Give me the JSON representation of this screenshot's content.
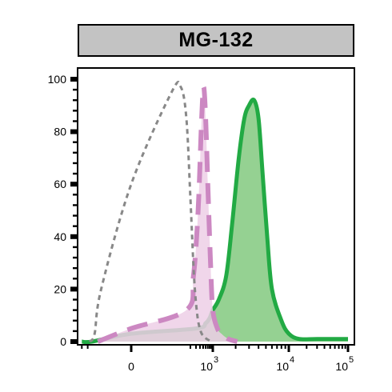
{
  "chart_data": {
    "type": "area",
    "title": "MG-132",
    "xlabel": "",
    "ylabel": "",
    "x_scale": "biexponential",
    "xlim": [
      -1500,
      100000
    ],
    "ylim": [
      0,
      100
    ],
    "y_ticks": [
      0,
      20,
      40,
      60,
      80,
      100
    ],
    "x_ticks": [
      {
        "value": 0,
        "label": "0",
        "exp": ""
      },
      {
        "value": 1000,
        "label": "10",
        "exp": "3"
      },
      {
        "value": 10000,
        "label": "10",
        "exp": "4"
      },
      {
        "value": 100000,
        "label": "10",
        "exp": "5"
      }
    ],
    "grid": false,
    "legend": "none",
    "series": [
      {
        "color": "#888888",
        "fill": "none",
        "line_style": "short-dash",
        "x": [
          -400,
          -220,
          -100,
          0,
          50,
          100,
          150,
          200,
          260,
          330,
          420,
          520,
          650,
          900
        ],
        "y": [
          0,
          3,
          20,
          60,
          95,
          97,
          85,
          55,
          25,
          10,
          4,
          2,
          1,
          0
        ]
      },
      {
        "color": "#cc88c2",
        "fill": "#edcfe6",
        "line_style": "long-dash",
        "x": [
          -150,
          0,
          150,
          250,
          350,
          450,
          520,
          600,
          700,
          850,
          1000,
          1150,
          1300,
          1600,
          2100
        ],
        "y": [
          0,
          5,
          12,
          25,
          50,
          85,
          97,
          85,
          60,
          30,
          12,
          5,
          3,
          1,
          0
        ]
      },
      {
        "color": "#22aa44",
        "fill": "#8fcf8c",
        "line_style": "solid",
        "x": [
          -1000,
          -300,
          0,
          300,
          600,
          800,
          1000,
          1200,
          1500,
          1800,
          2200,
          2600,
          3000,
          3500,
          4000,
          4500,
          5200,
          6000,
          8000,
          10000,
          15000,
          30000,
          100000
        ],
        "y": [
          0,
          0,
          3,
          5,
          7,
          9,
          12,
          16,
          25,
          45,
          70,
          85,
          90,
          92,
          85,
          65,
          40,
          20,
          8,
          3,
          1,
          1,
          1
        ]
      }
    ]
  }
}
